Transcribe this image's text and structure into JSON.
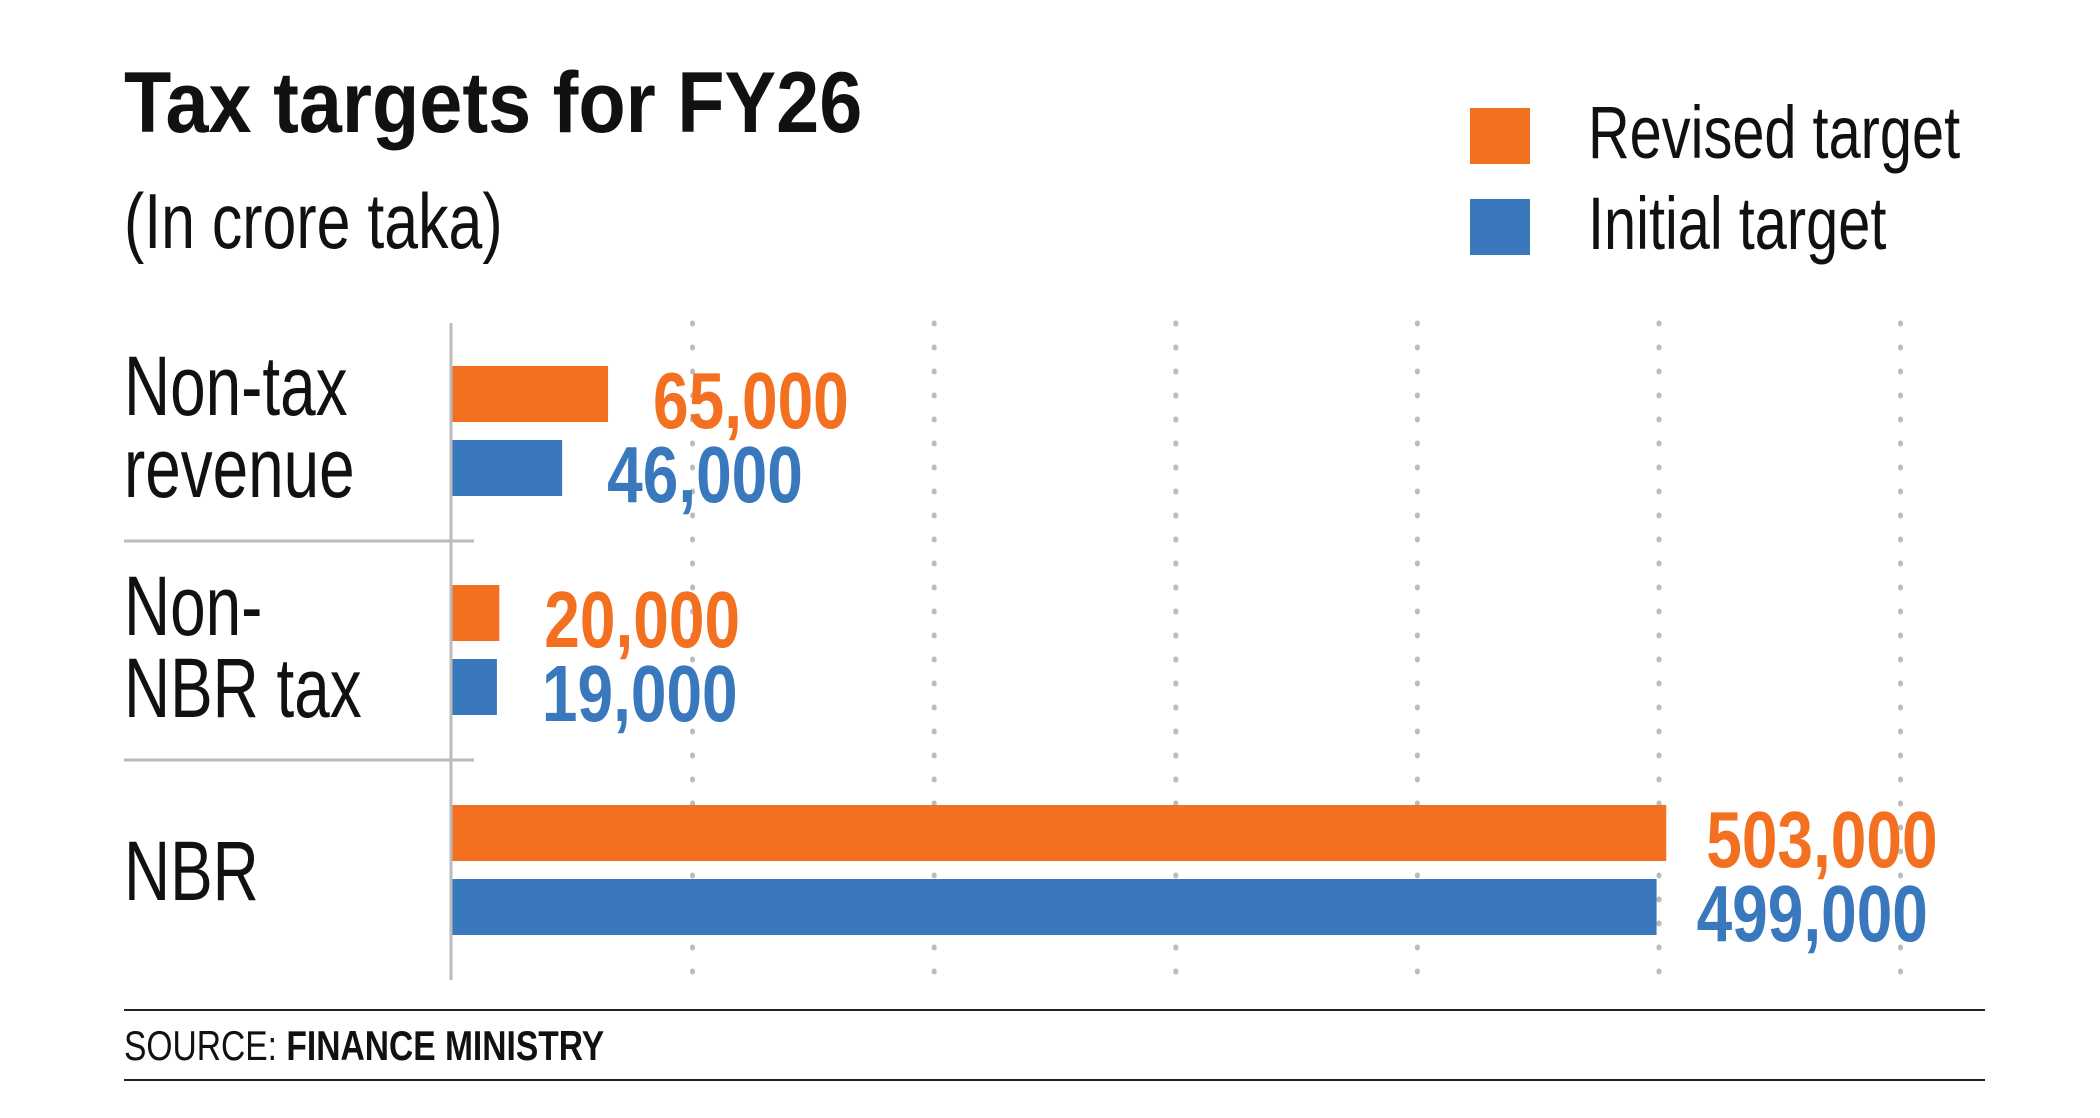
{
  "chart_data": {
    "type": "bar",
    "orientation": "horizontal",
    "title": "Tax targets for FY26",
    "subtitle": "(In crore taka)",
    "categories": [
      "Non-tax revenue",
      "Non-NBR tax",
      "NBR"
    ],
    "category_lines": [
      [
        "Non-tax",
        "revenue"
      ],
      [
        "Non-",
        "NBR tax"
      ],
      [
        "NBR"
      ]
    ],
    "series": [
      {
        "name": "Revised target",
        "color": "#F37021",
        "values": [
          65000,
          20000,
          503000
        ],
        "labels": [
          "65,000",
          "20,000",
          "503,000"
        ]
      },
      {
        "name": "Initial target",
        "color": "#3A78BE",
        "values": [
          46000,
          19000,
          499000
        ],
        "labels": [
          "46,000",
          "19,000",
          "499,000"
        ]
      }
    ],
    "xlim": [
      0,
      600000
    ],
    "grid": {
      "on": true,
      "style": "dotted",
      "step": 100000
    },
    "legend_position": "top-right",
    "source_label": "SOURCE:",
    "source": "FINANCE MINISTRY"
  }
}
